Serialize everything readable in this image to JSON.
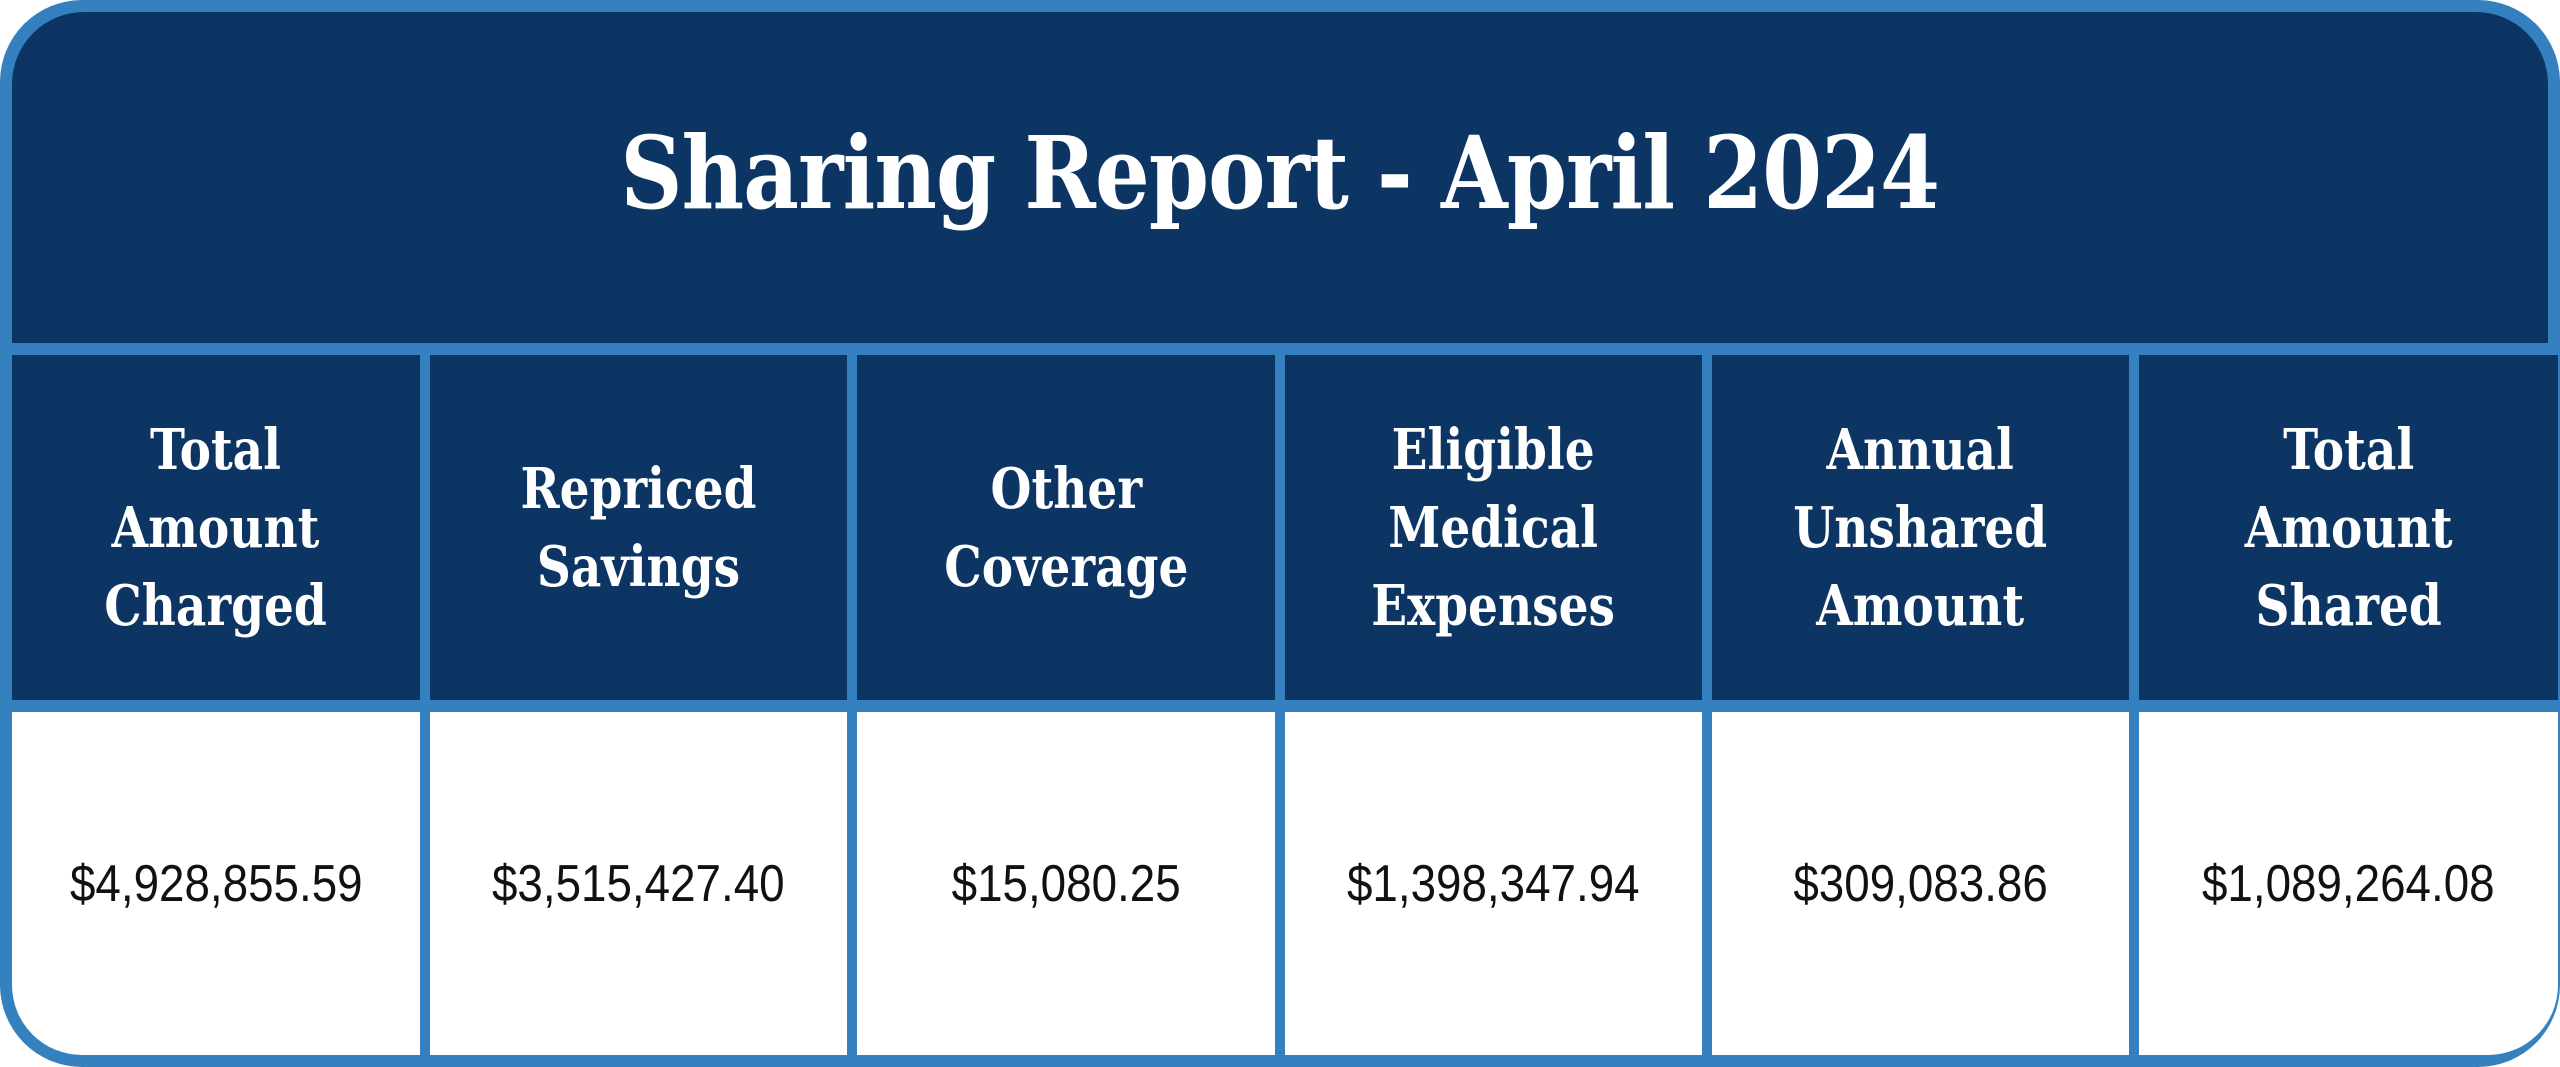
{
  "report": {
    "title": "Sharing Report - April 2024",
    "colors": {
      "header_bg": "#0c3563",
      "border": "#3580bf",
      "value_bg": "#ffffff",
      "header_text": "#ffffff",
      "value_text": "#111111"
    },
    "columns": [
      {
        "header": "Total\nAmount\nCharged",
        "value": "$4,928,855.59"
      },
      {
        "header": "Repriced\nSavings",
        "value": "$3,515,427.40"
      },
      {
        "header": "Other\nCoverage",
        "value": "$15,080.25"
      },
      {
        "header": "Eligible\nMedical\nExpenses",
        "value": "$1,398,347.94"
      },
      {
        "header": "Annual\nUnshared\nAmount",
        "value": "$309,083.86"
      },
      {
        "header": "Total\nAmount\nShared",
        "value": "$1,089,264.08"
      }
    ]
  }
}
